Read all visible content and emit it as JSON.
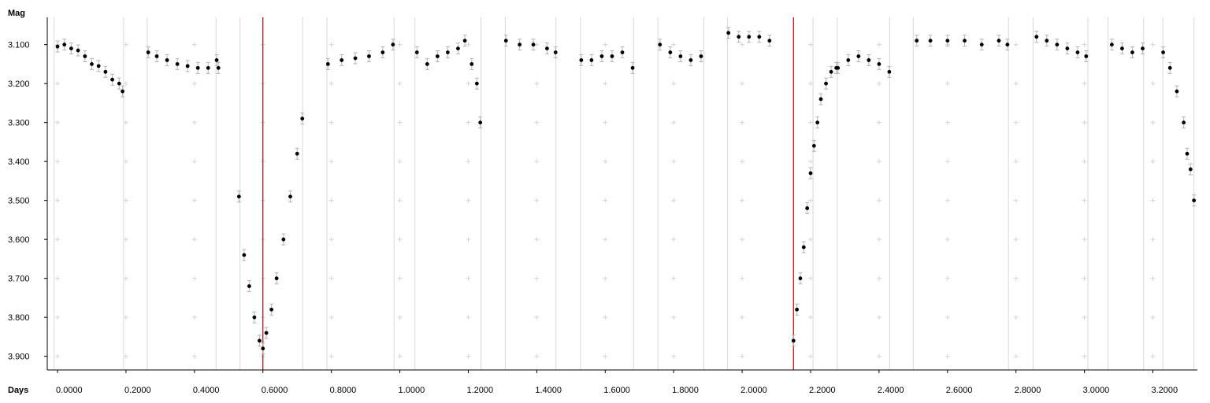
{
  "chart_data": {
    "type": "scatter",
    "title": "",
    "ylabel": "Mag",
    "xlabel": "Days",
    "xlim": [
      -0.03,
      3.33
    ],
    "ylim": [
      3.935,
      3.03
    ],
    "y_reversed": true,
    "x_ticks": [
      "0.0000",
      "0.2000",
      "0.4000",
      "0.6000",
      "0.8000",
      "1.0000",
      "1.2000",
      "1.4000",
      "1.6000",
      "1.8000",
      "2.0000",
      "2.2000",
      "2.4000",
      "2.6000",
      "2.8000",
      "3.0000",
      "3.2000"
    ],
    "x_tick_values": [
      0,
      0.2,
      0.4,
      0.6,
      0.8,
      1.0,
      1.2,
      1.4,
      1.6,
      1.8,
      2.0,
      2.2,
      2.4,
      2.6,
      2.8,
      3.0,
      3.2
    ],
    "y_ticks": [
      "3.100",
      "3.200",
      "3.300",
      "3.400",
      "3.500",
      "3.600",
      "3.700",
      "3.800",
      "3.900"
    ],
    "y_tick_values": [
      3.1,
      3.2,
      3.3,
      3.4,
      3.5,
      3.6,
      3.7,
      3.8,
      3.9
    ],
    "session_boundaries": [
      -0.01,
      0.193,
      0.262,
      0.463,
      0.533,
      0.716,
      0.787,
      0.983,
      1.044,
      1.237,
      1.308,
      1.456,
      1.528,
      1.683,
      1.754,
      1.888,
      1.957,
      2.207,
      2.278,
      2.431,
      2.5,
      2.778,
      2.85,
      3.01,
      3.069,
      3.173,
      3.229,
      3.32
    ],
    "minima_markers": [
      0.6,
      2.15
    ],
    "colors": {
      "points": "#000000",
      "error_bars": "#b4b4b4",
      "session_lines": "#d8d8d8",
      "minima_lines": "#c00000",
      "grid_crosses": "#d4d4d4"
    },
    "grid": "crosses",
    "series": [
      {
        "x": [
          0.0,
          0.02,
          0.04,
          0.06,
          0.08,
          0.1,
          0.12,
          0.14,
          0.16,
          0.18,
          0.19,
          0.265,
          0.29,
          0.32,
          0.35,
          0.38,
          0.41,
          0.44,
          0.465,
          0.47,
          0.53,
          0.545,
          0.56,
          0.575,
          0.59,
          0.6,
          0.61,
          0.625,
          0.64,
          0.66,
          0.68,
          0.7,
          0.715,
          0.79,
          0.83,
          0.87,
          0.91,
          0.95,
          0.98,
          1.05,
          1.08,
          1.11,
          1.14,
          1.17,
          1.19,
          1.21,
          1.225,
          1.235,
          1.31,
          1.35,
          1.39,
          1.43,
          1.455,
          1.53,
          1.56,
          1.59,
          1.62,
          1.65,
          1.68,
          1.76,
          1.79,
          1.82,
          1.85,
          1.88,
          1.96,
          1.99,
          2.02,
          2.05,
          2.08,
          2.15,
          2.16,
          2.17,
          2.18,
          2.19,
          2.2,
          2.21,
          2.22,
          2.23,
          2.245,
          2.26,
          2.275,
          2.28,
          2.31,
          2.34,
          2.37,
          2.4,
          2.43,
          2.51,
          2.55,
          2.6,
          2.65,
          2.7,
          2.75,
          2.775,
          2.86,
          2.89,
          2.92,
          2.95,
          2.98,
          3.005,
          3.08,
          3.11,
          3.14,
          3.17,
          3.23,
          3.25,
          3.27,
          3.29,
          3.3,
          3.31,
          3.32
        ],
        "y": [
          3.105,
          3.1,
          3.11,
          3.115,
          3.13,
          3.15,
          3.155,
          3.17,
          3.19,
          3.2,
          3.22,
          3.12,
          3.13,
          3.14,
          3.15,
          3.155,
          3.16,
          3.16,
          3.14,
          3.16,
          3.49,
          3.64,
          3.72,
          3.8,
          3.86,
          3.88,
          3.84,
          3.78,
          3.7,
          3.6,
          3.49,
          3.38,
          3.29,
          3.15,
          3.14,
          3.135,
          3.13,
          3.12,
          3.1,
          3.12,
          3.15,
          3.13,
          3.12,
          3.11,
          3.09,
          3.15,
          3.2,
          3.3,
          3.09,
          3.1,
          3.1,
          3.11,
          3.12,
          3.14,
          3.14,
          3.13,
          3.13,
          3.12,
          3.16,
          3.1,
          3.12,
          3.13,
          3.14,
          3.13,
          3.07,
          3.08,
          3.08,
          3.08,
          3.09,
          3.86,
          3.78,
          3.7,
          3.62,
          3.52,
          3.43,
          3.36,
          3.3,
          3.24,
          3.2,
          3.17,
          3.16,
          3.16,
          3.14,
          3.13,
          3.14,
          3.15,
          3.17,
          3.09,
          3.09,
          3.09,
          3.09,
          3.1,
          3.09,
          3.1,
          3.08,
          3.09,
          3.1,
          3.11,
          3.12,
          3.13,
          3.1,
          3.11,
          3.12,
          3.11,
          3.12,
          3.16,
          3.22,
          3.3,
          3.38,
          3.42,
          3.5
        ]
      }
    ]
  }
}
